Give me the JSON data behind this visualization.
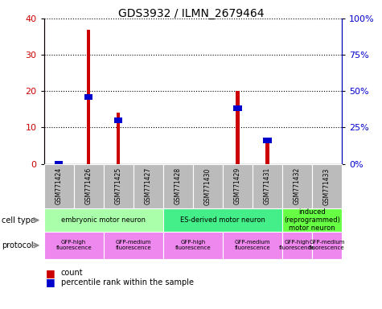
{
  "title": "GDS3932 / ILMN_2679464",
  "samples": [
    "GSM771424",
    "GSM771426",
    "GSM771425",
    "GSM771427",
    "GSM771428",
    "GSM771430",
    "GSM771429",
    "GSM771431",
    "GSM771432",
    "GSM771433"
  ],
  "counts": [
    0.3,
    37,
    14,
    0,
    0,
    0,
    20,
    6,
    0,
    0
  ],
  "percentile_ranks": [
    2,
    48,
    32,
    0,
    0,
    0,
    40,
    18,
    0,
    0
  ],
  "ylim_left": [
    0,
    40
  ],
  "ylim_right": [
    0,
    100
  ],
  "yticks_left": [
    0,
    10,
    20,
    30,
    40
  ],
  "yticks_right": [
    0,
    25,
    50,
    75,
    100
  ],
  "ytick_labels_right": [
    "0%",
    "25%",
    "50%",
    "75%",
    "100%"
  ],
  "bar_color_hex": "#cc0000",
  "pct_color_hex": "#0000cc",
  "sample_bg": "#bbbbbb",
  "cell_types": [
    {
      "label": "embryonic motor neuron",
      "start": 0,
      "end": 3,
      "color": "#aaffaa"
    },
    {
      "label": "ES-derived motor neuron",
      "start": 4,
      "end": 7,
      "color": "#44ee88"
    },
    {
      "label": "induced\n(reprogrammed)\nmotor neuron",
      "start": 8,
      "end": 9,
      "color": "#66ff44"
    }
  ],
  "protocols": [
    {
      "label": "GFP-high\nfluorescence",
      "start": 0,
      "end": 1,
      "color": "#ee88ee"
    },
    {
      "label": "GFP-medium\nfluorescence",
      "start": 2,
      "end": 3,
      "color": "#ee88ee"
    },
    {
      "label": "GFP-high\nfluorescence",
      "start": 4,
      "end": 5,
      "color": "#ee88ee"
    },
    {
      "label": "GFP-medium\nfluorescence",
      "start": 6,
      "end": 7,
      "color": "#ee88ee"
    },
    {
      "label": "GFP-high\nfluorescence",
      "start": 8,
      "end": 8,
      "color": "#ee88ee"
    },
    {
      "label": "GFP-medium\nfluorescence",
      "start": 9,
      "end": 9,
      "color": "#ee88ee"
    }
  ],
  "legend_count_label": "count",
  "legend_percentile_label": "percentile rank within the sample"
}
